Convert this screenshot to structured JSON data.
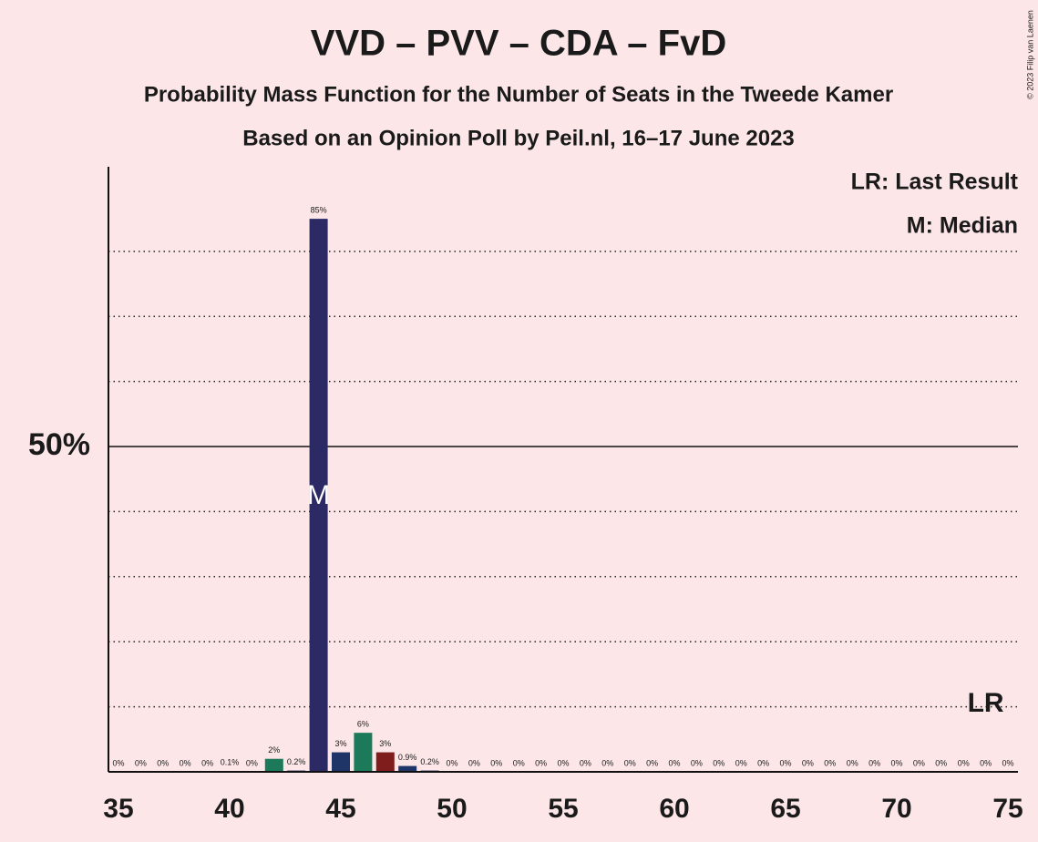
{
  "chart_data": {
    "type": "bar",
    "title": "VVD – PVV – CDA – FvD",
    "subtitle": "Probability Mass Function for the Number of Seats in the Tweede Kamer",
    "subtitle2": "Based on an Opinion Poll by Peil.nl, 16–17 June 2023",
    "copyright": "© 2023 Filip van Laenen",
    "legend": [
      "LR: Last Result",
      "M: Median"
    ],
    "x": [
      35,
      36,
      37,
      38,
      39,
      40,
      41,
      42,
      43,
      44,
      45,
      46,
      47,
      48,
      49,
      50,
      51,
      52,
      53,
      54,
      55,
      56,
      57,
      58,
      59,
      60,
      61,
      62,
      63,
      64,
      65,
      66,
      67,
      68,
      69,
      70,
      71,
      72,
      73,
      74,
      75
    ],
    "values": [
      0,
      0,
      0,
      0,
      0,
      0.1,
      0,
      2,
      0.2,
      85,
      3,
      6,
      3,
      0.9,
      0.2,
      0,
      0,
      0,
      0,
      0,
      0,
      0,
      0,
      0,
      0,
      0,
      0,
      0,
      0,
      0,
      0,
      0,
      0,
      0,
      0,
      0,
      0,
      0,
      0,
      0,
      0
    ],
    "value_labels": [
      "0%",
      "0%",
      "0%",
      "0%",
      "0%",
      "0.1%",
      "0%",
      "2%",
      "0.2%",
      "85%",
      "3%",
      "6%",
      "3%",
      "0.9%",
      "0.2%",
      "0%",
      "0%",
      "0%",
      "0%",
      "0%",
      "0%",
      "0%",
      "0%",
      "0%",
      "0%",
      "0%",
      "0%",
      "0%",
      "0%",
      "0%",
      "0%",
      "0%",
      "0%",
      "0%",
      "0%",
      "0%",
      "0%",
      "0%",
      "0%",
      "0%",
      "0%"
    ],
    "colors": [
      "#2b2a64",
      "#2b2a64",
      "#2b2a64",
      "#2b2a64",
      "#2b2a64",
      "#2b2a64",
      "#2b2a64",
      "#1c7a5a",
      "#2b2a64",
      "#2b2a64",
      "#1f3568",
      "#1c7a5a",
      "#7f1d1d",
      "#1f3568",
      "#2b2a64",
      "#2b2a64",
      "#2b2a64",
      "#2b2a64",
      "#2b2a64",
      "#2b2a64",
      "#2b2a64",
      "#2b2a64",
      "#2b2a64",
      "#2b2a64",
      "#2b2a64",
      "#2b2a64",
      "#2b2a64",
      "#2b2a64",
      "#2b2a64",
      "#2b2a64",
      "#2b2a64",
      "#2b2a64",
      "#2b2a64",
      "#2b2a64",
      "#2b2a64",
      "#2b2a64",
      "#2b2a64",
      "#2b2a64",
      "#2b2a64",
      "#2b2a64",
      "#2b2a64"
    ],
    "xlim": [
      34.55,
      75.45
    ],
    "xticks": [
      35,
      40,
      45,
      50,
      55,
      60,
      65,
      70,
      75
    ],
    "ylim": [
      0,
      93
    ],
    "yticks": [
      {
        "value": 50,
        "label": "50%"
      }
    ],
    "grid_lines": [
      10,
      20,
      30,
      40,
      60,
      70,
      80
    ],
    "median": 44,
    "median_marker": "M",
    "last_result": 74,
    "last_result_marker": "LR"
  }
}
